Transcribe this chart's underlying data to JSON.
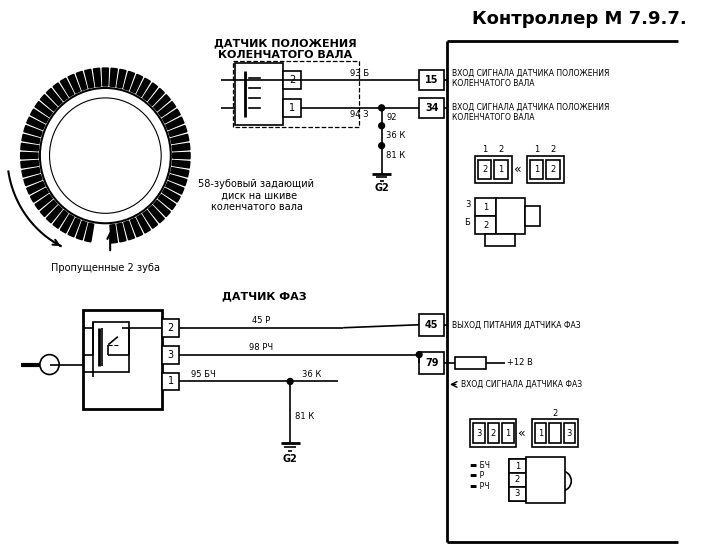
{
  "bg_color": "#ffffff",
  "title": "Контроллер М 7.9.7.",
  "fig_width": 7.08,
  "fig_height": 5.53,
  "label_datpol": "ДАТЧИК ПОЛОЖЕНИЯ\nКОЛЕНЧАТОГО ВАЛА",
  "label_datfaz": "ДАТЧИК ФАЗ",
  "label_disk": "58-зубовый задающий\n  диск на шкиве\nколенчатого вала",
  "label_prop": "Пропущенные 2 зуба",
  "label_93b": "93 Б",
  "label_943": "94 З",
  "label_15": "15",
  "label_34": "34",
  "label_92": "92",
  "label_36k_top": "36 К",
  "label_81k_top": "81 К",
  "label_g2_top": "G2",
  "label_45p": "45 Р",
  "label_98rch": "98 РЧ",
  "label_45": "45",
  "label_79": "79",
  "label_95bch": "95 БЧ",
  "label_36k_bot": "36 К",
  "label_81k_bot": "81 К",
  "label_g2_bot": "G2",
  "label_12v": "+12 В",
  "label_vhod_faz": "ВХОД СИГНАЛА ДАТЧИКА ФАЗ",
  "label_vihod_faz": "ВЫХОД ПИТАНИЯ ДАТЧИКА ФАЗ",
  "label_vhod_kol1": "ВХОД СИГНАЛА ДАТЧИКА ПОЛОЖЕНИЯ\nКОЛЕНЧАТОГО ВАЛА",
  "label_vhod_kol2": "ВХОД СИГНАЛА ДАТЧИКА ПОЛОЖЕНИЯ\nКОЛЕНЧАТОГО ВАЛА"
}
